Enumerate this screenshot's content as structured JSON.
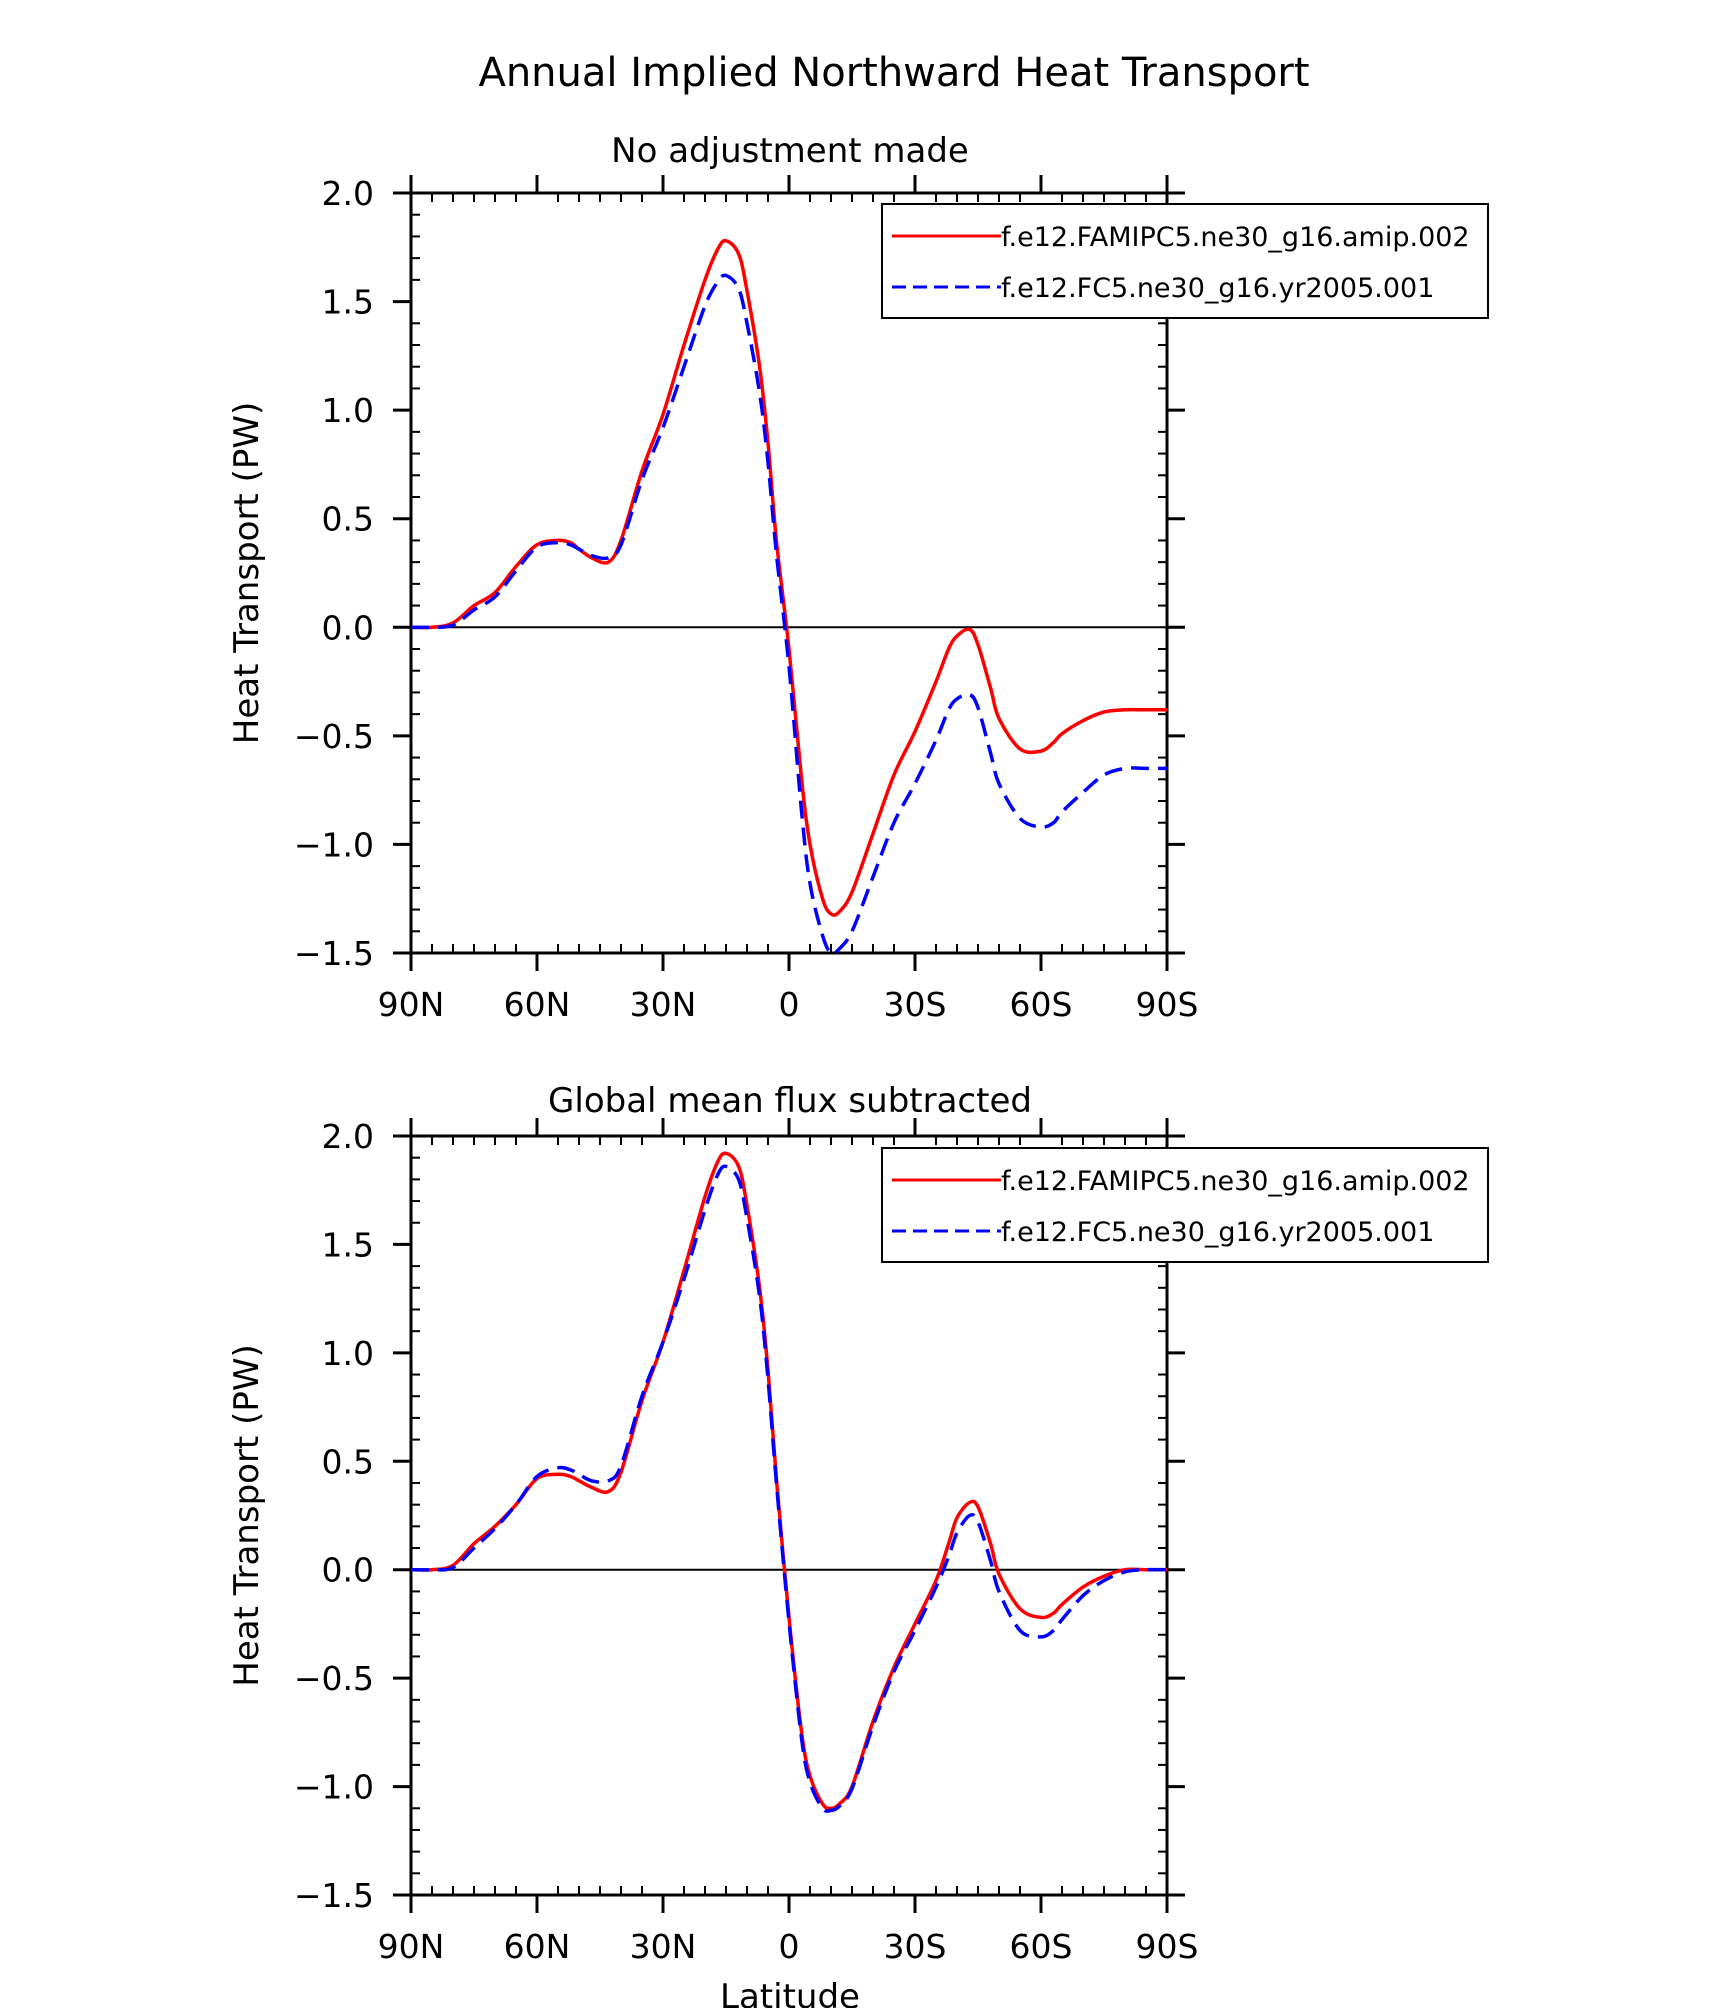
{
  "figure": {
    "title": "Annual Implied Northward Heat Transport",
    "xlabel": "Latitude"
  },
  "chart_data": [
    {
      "type": "line",
      "title": "No adjustment made",
      "xlabel": "",
      "ylabel": "Heat Transport (PW)",
      "xlim": [
        -90,
        90
      ],
      "ylim": [
        -1.5,
        2.0
      ],
      "xticks": [
        -90,
        -60,
        -30,
        0,
        30,
        60,
        90
      ],
      "xtick_labels": [
        "90N",
        "60N",
        "30N",
        "0",
        "30S",
        "60S",
        "90S"
      ],
      "yticks": [
        -1.5,
        -1.0,
        -0.5,
        0.0,
        0.5,
        1.0,
        1.5,
        2.0
      ],
      "ytick_labels": [
        "−1.5",
        "−1.0",
        "−0.5",
        "0.0",
        "0.5",
        "1.0",
        "1.5",
        "2.0"
      ],
      "zero_line": true,
      "legend_position": "top-right",
      "series": [
        {
          "name": "f.e12.FAMIPC5.ne30_g16.amip.002",
          "color": "#ff0000",
          "dash": "solid",
          "x": [
            -90,
            -85,
            -80,
            -75,
            -70,
            -65,
            -60,
            -55,
            -52,
            -50,
            -47,
            -43,
            -40,
            -35,
            -30,
            -25,
            -20,
            -17,
            -15,
            -12,
            -10,
            -7,
            -5,
            -3,
            0,
            3,
            5,
            8,
            10,
            12,
            15,
            20,
            25,
            30,
            35,
            38,
            40,
            43,
            45,
            48,
            50,
            55,
            60,
            63,
            65,
            70,
            75,
            80,
            85,
            90
          ],
          "y": [
            0.0,
            0.0,
            0.02,
            0.1,
            0.16,
            0.28,
            0.38,
            0.4,
            0.39,
            0.36,
            0.32,
            0.3,
            0.4,
            0.72,
            0.98,
            1.3,
            1.6,
            1.74,
            1.78,
            1.72,
            1.55,
            1.2,
            0.85,
            0.4,
            -0.1,
            -0.7,
            -1.0,
            -1.25,
            -1.32,
            -1.31,
            -1.22,
            -0.95,
            -0.68,
            -0.48,
            -0.25,
            -0.1,
            -0.04,
            -0.01,
            -0.08,
            -0.28,
            -0.42,
            -0.56,
            -0.57,
            -0.53,
            -0.49,
            -0.43,
            -0.39,
            -0.38,
            -0.38,
            -0.38
          ]
        },
        {
          "name": "f.e12.FC5.ne30_g16.yr2005.001",
          "color": "#0000ff",
          "dash": "dashed",
          "x": [
            -90,
            -85,
            -80,
            -75,
            -70,
            -65,
            -60,
            -55,
            -52,
            -50,
            -47,
            -43,
            -40,
            -35,
            -30,
            -25,
            -20,
            -17,
            -15,
            -12,
            -10,
            -7,
            -5,
            -3,
            0,
            3,
            5,
            8,
            10,
            12,
            15,
            20,
            25,
            30,
            35,
            38,
            40,
            43,
            45,
            48,
            50,
            55,
            60,
            63,
            65,
            70,
            75,
            80,
            85,
            90
          ],
          "y": [
            0.0,
            0.0,
            0.01,
            0.08,
            0.14,
            0.26,
            0.37,
            0.39,
            0.38,
            0.36,
            0.33,
            0.32,
            0.38,
            0.68,
            0.92,
            1.2,
            1.48,
            1.59,
            1.62,
            1.56,
            1.4,
            1.08,
            0.76,
            0.34,
            -0.18,
            -0.85,
            -1.18,
            -1.42,
            -1.5,
            -1.48,
            -1.4,
            -1.15,
            -0.9,
            -0.72,
            -0.52,
            -0.38,
            -0.33,
            -0.31,
            -0.37,
            -0.58,
            -0.72,
            -0.88,
            -0.92,
            -0.9,
            -0.85,
            -0.76,
            -0.68,
            -0.65,
            -0.65,
            -0.65
          ]
        }
      ]
    },
    {
      "type": "line",
      "title": "Global mean flux subtracted",
      "xlabel": "Latitude",
      "ylabel": "Heat Transport (PW)",
      "xlim": [
        -90,
        90
      ],
      "ylim": [
        -1.5,
        2.0
      ],
      "xticks": [
        -90,
        -60,
        -30,
        0,
        30,
        60,
        90
      ],
      "xtick_labels": [
        "90N",
        "60N",
        "30N",
        "0",
        "30S",
        "60S",
        "90S"
      ],
      "yticks": [
        -1.5,
        -1.0,
        -0.5,
        0.0,
        0.5,
        1.0,
        1.5,
        2.0
      ],
      "ytick_labels": [
        "−1.5",
        "−1.0",
        "−0.5",
        "0.0",
        "0.5",
        "1.0",
        "1.5",
        "2.0"
      ],
      "zero_line": true,
      "legend_position": "top-right",
      "series": [
        {
          "name": "f.e12.FAMIPC5.ne30_g16.amip.002",
          "color": "#ff0000",
          "dash": "solid",
          "x": [
            -90,
            -85,
            -80,
            -75,
            -70,
            -65,
            -60,
            -55,
            -52,
            -50,
            -47,
            -43,
            -40,
            -35,
            -30,
            -25,
            -20,
            -17,
            -15,
            -12,
            -10,
            -7,
            -5,
            -3,
            0,
            3,
            5,
            8,
            10,
            12,
            15,
            20,
            25,
            30,
            35,
            38,
            40,
            43,
            45,
            48,
            50,
            55,
            60,
            63,
            65,
            70,
            75,
            80,
            85,
            90
          ],
          "y": [
            0.0,
            0.0,
            0.02,
            0.12,
            0.2,
            0.3,
            0.42,
            0.44,
            0.43,
            0.41,
            0.38,
            0.36,
            0.45,
            0.78,
            1.05,
            1.38,
            1.72,
            1.88,
            1.92,
            1.86,
            1.68,
            1.3,
            0.92,
            0.42,
            -0.22,
            -0.75,
            -0.95,
            -1.08,
            -1.1,
            -1.08,
            -1.0,
            -0.7,
            -0.45,
            -0.25,
            -0.05,
            0.12,
            0.24,
            0.31,
            0.29,
            0.12,
            -0.02,
            -0.18,
            -0.22,
            -0.2,
            -0.16,
            -0.08,
            -0.03,
            0.0,
            0.0,
            0.0
          ]
        },
        {
          "name": "f.e12.FC5.ne30_g16.yr2005.001",
          "color": "#0000ff",
          "dash": "dashed",
          "x": [
            -90,
            -85,
            -80,
            -75,
            -70,
            -65,
            -60,
            -55,
            -52,
            -50,
            -47,
            -43,
            -40,
            -35,
            -30,
            -25,
            -20,
            -17,
            -15,
            -12,
            -10,
            -7,
            -5,
            -3,
            0,
            3,
            5,
            8,
            10,
            12,
            15,
            20,
            25,
            30,
            35,
            38,
            40,
            43,
            45,
            48,
            50,
            55,
            60,
            63,
            65,
            70,
            75,
            80,
            85,
            90
          ],
          "y": [
            0.0,
            0.0,
            0.01,
            0.1,
            0.19,
            0.3,
            0.43,
            0.47,
            0.46,
            0.44,
            0.41,
            0.41,
            0.48,
            0.8,
            1.05,
            1.34,
            1.66,
            1.82,
            1.86,
            1.8,
            1.62,
            1.26,
            0.88,
            0.4,
            -0.24,
            -0.78,
            -0.98,
            -1.1,
            -1.11,
            -1.09,
            -1.01,
            -0.72,
            -0.47,
            -0.28,
            -0.08,
            0.06,
            0.17,
            0.25,
            0.22,
            0.04,
            -0.1,
            -0.28,
            -0.31,
            -0.28,
            -0.23,
            -0.12,
            -0.05,
            -0.01,
            0.0,
            0.0
          ]
        }
      ]
    }
  ]
}
